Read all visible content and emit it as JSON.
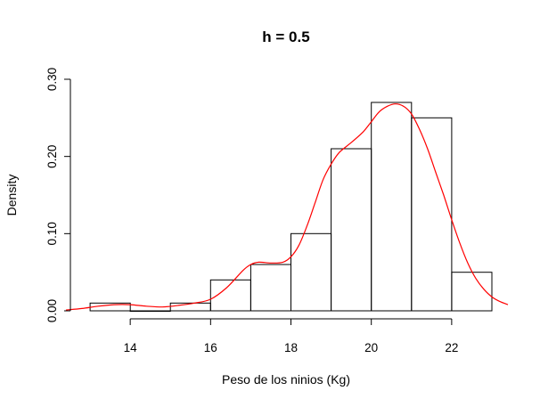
{
  "chart_data": {
    "type": "histogram",
    "title": "h = 0.5",
    "xlabel": "Peso de los ninios (Kg)",
    "ylabel": "Density",
    "xlim": [
      12.4,
      23.4
    ],
    "ylim": [
      0,
      0.3
    ],
    "x_ticks": [
      14,
      16,
      18,
      20,
      22
    ],
    "x_tick_labels": [
      "14",
      "16",
      "18",
      "20",
      "22"
    ],
    "y_ticks": [
      0,
      0.1,
      0.2,
      0.3
    ],
    "y_tick_labels": [
      "0.00",
      "0.10",
      "0.20",
      "0.30"
    ],
    "bins": [
      {
        "x0": 13,
        "x1": 14,
        "density": 0.01
      },
      {
        "x0": 14,
        "x1": 15,
        "density": 0.0
      },
      {
        "x0": 15,
        "x1": 16,
        "density": 0.01
      },
      {
        "x0": 16,
        "x1": 17,
        "density": 0.04
      },
      {
        "x0": 17,
        "x1": 18,
        "density": 0.06
      },
      {
        "x0": 18,
        "x1": 19,
        "density": 0.1
      },
      {
        "x0": 19,
        "x1": 20,
        "density": 0.21
      },
      {
        "x0": 20,
        "x1": 21,
        "density": 0.27
      },
      {
        "x0": 21,
        "x1": 22,
        "density": 0.25
      },
      {
        "x0": 22,
        "x1": 23,
        "density": 0.05
      }
    ],
    "density_curve": {
      "color": "#ff0000",
      "x": [
        12.4,
        12.8,
        13.2,
        13.6,
        14.0,
        14.4,
        14.8,
        15.2,
        15.6,
        16.0,
        16.4,
        16.8,
        17.0,
        17.2,
        17.5,
        17.8,
        18.0,
        18.2,
        18.4,
        18.6,
        18.8,
        19.0,
        19.2,
        19.5,
        19.8,
        20.0,
        20.2,
        20.4,
        20.6,
        20.8,
        21.0,
        21.2,
        21.4,
        21.6,
        21.8,
        22.0,
        22.2,
        22.4,
        22.6,
        22.8,
        23.0,
        23.2,
        23.4
      ],
      "y": [
        0.001,
        0.003,
        0.006,
        0.008,
        0.008,
        0.006,
        0.005,
        0.007,
        0.01,
        0.015,
        0.03,
        0.052,
        0.06,
        0.063,
        0.062,
        0.063,
        0.07,
        0.085,
        0.11,
        0.14,
        0.17,
        0.19,
        0.205,
        0.218,
        0.232,
        0.245,
        0.258,
        0.265,
        0.268,
        0.265,
        0.255,
        0.235,
        0.21,
        0.18,
        0.15,
        0.118,
        0.088,
        0.062,
        0.042,
        0.028,
        0.018,
        0.012,
        0.008
      ]
    }
  }
}
